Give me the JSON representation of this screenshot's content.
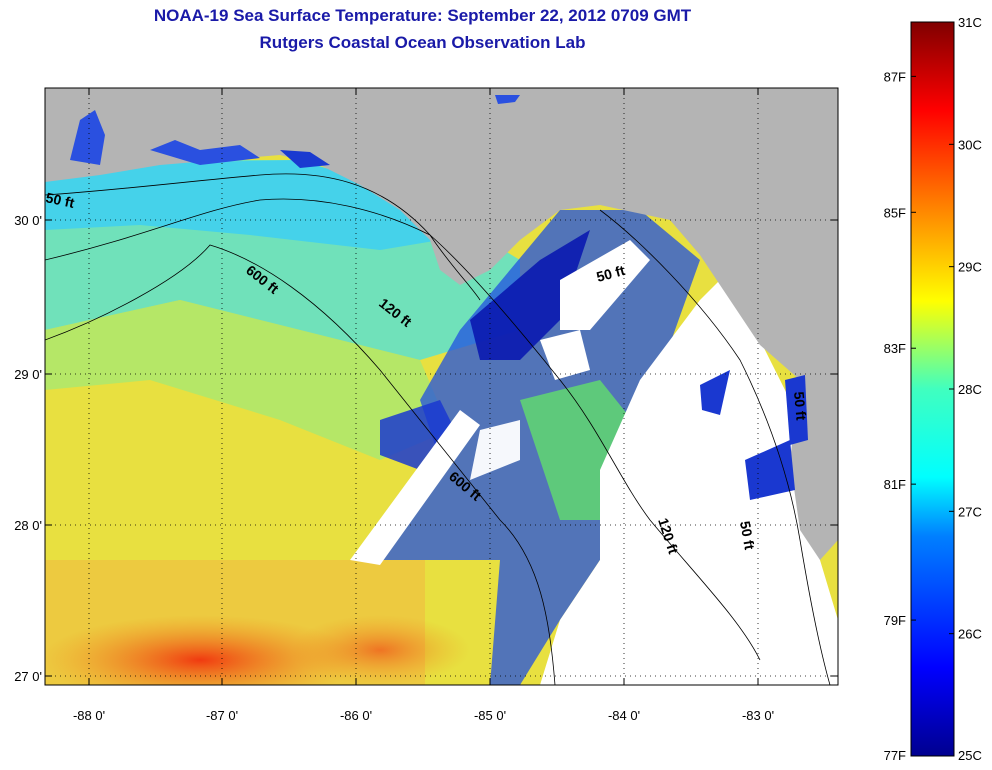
{
  "header": {
    "title": "NOAA-19 Sea Surface Temperature:  September 22, 2012 0709 GMT",
    "subtitle": "Rutgers Coastal Ocean Observation Lab"
  },
  "map": {
    "lon_ticks": [
      "-88 0'",
      "-87 0'",
      "-86 0'",
      "-85 0'",
      "-84 0'",
      "-83 0'"
    ],
    "lat_ticks": [
      "27 0'",
      "28 0'",
      "29 0'",
      "30 0'"
    ],
    "contour_labels": [
      "50 ft",
      "600 ft",
      "120 ft",
      "600 ft",
      "50 ft",
      "120 ft",
      "50 ft",
      "50 ft"
    ],
    "land_color": "#b4b4b4",
    "cloud_color": "#ffffff"
  },
  "colorbar": {
    "celsius_labels": [
      "31C",
      "30C",
      "29C",
      "28C",
      "27C",
      "26C",
      "25C"
    ],
    "fahrenheit_labels": [
      "87F",
      "85F",
      "83F",
      "81F",
      "79F",
      "77F"
    ],
    "celsius_values": [
      31,
      30,
      29,
      28,
      27,
      26,
      25
    ],
    "fahrenheit_values": [
      87,
      85,
      83,
      81,
      79,
      77
    ],
    "range_c": [
      25,
      31
    ]
  }
}
